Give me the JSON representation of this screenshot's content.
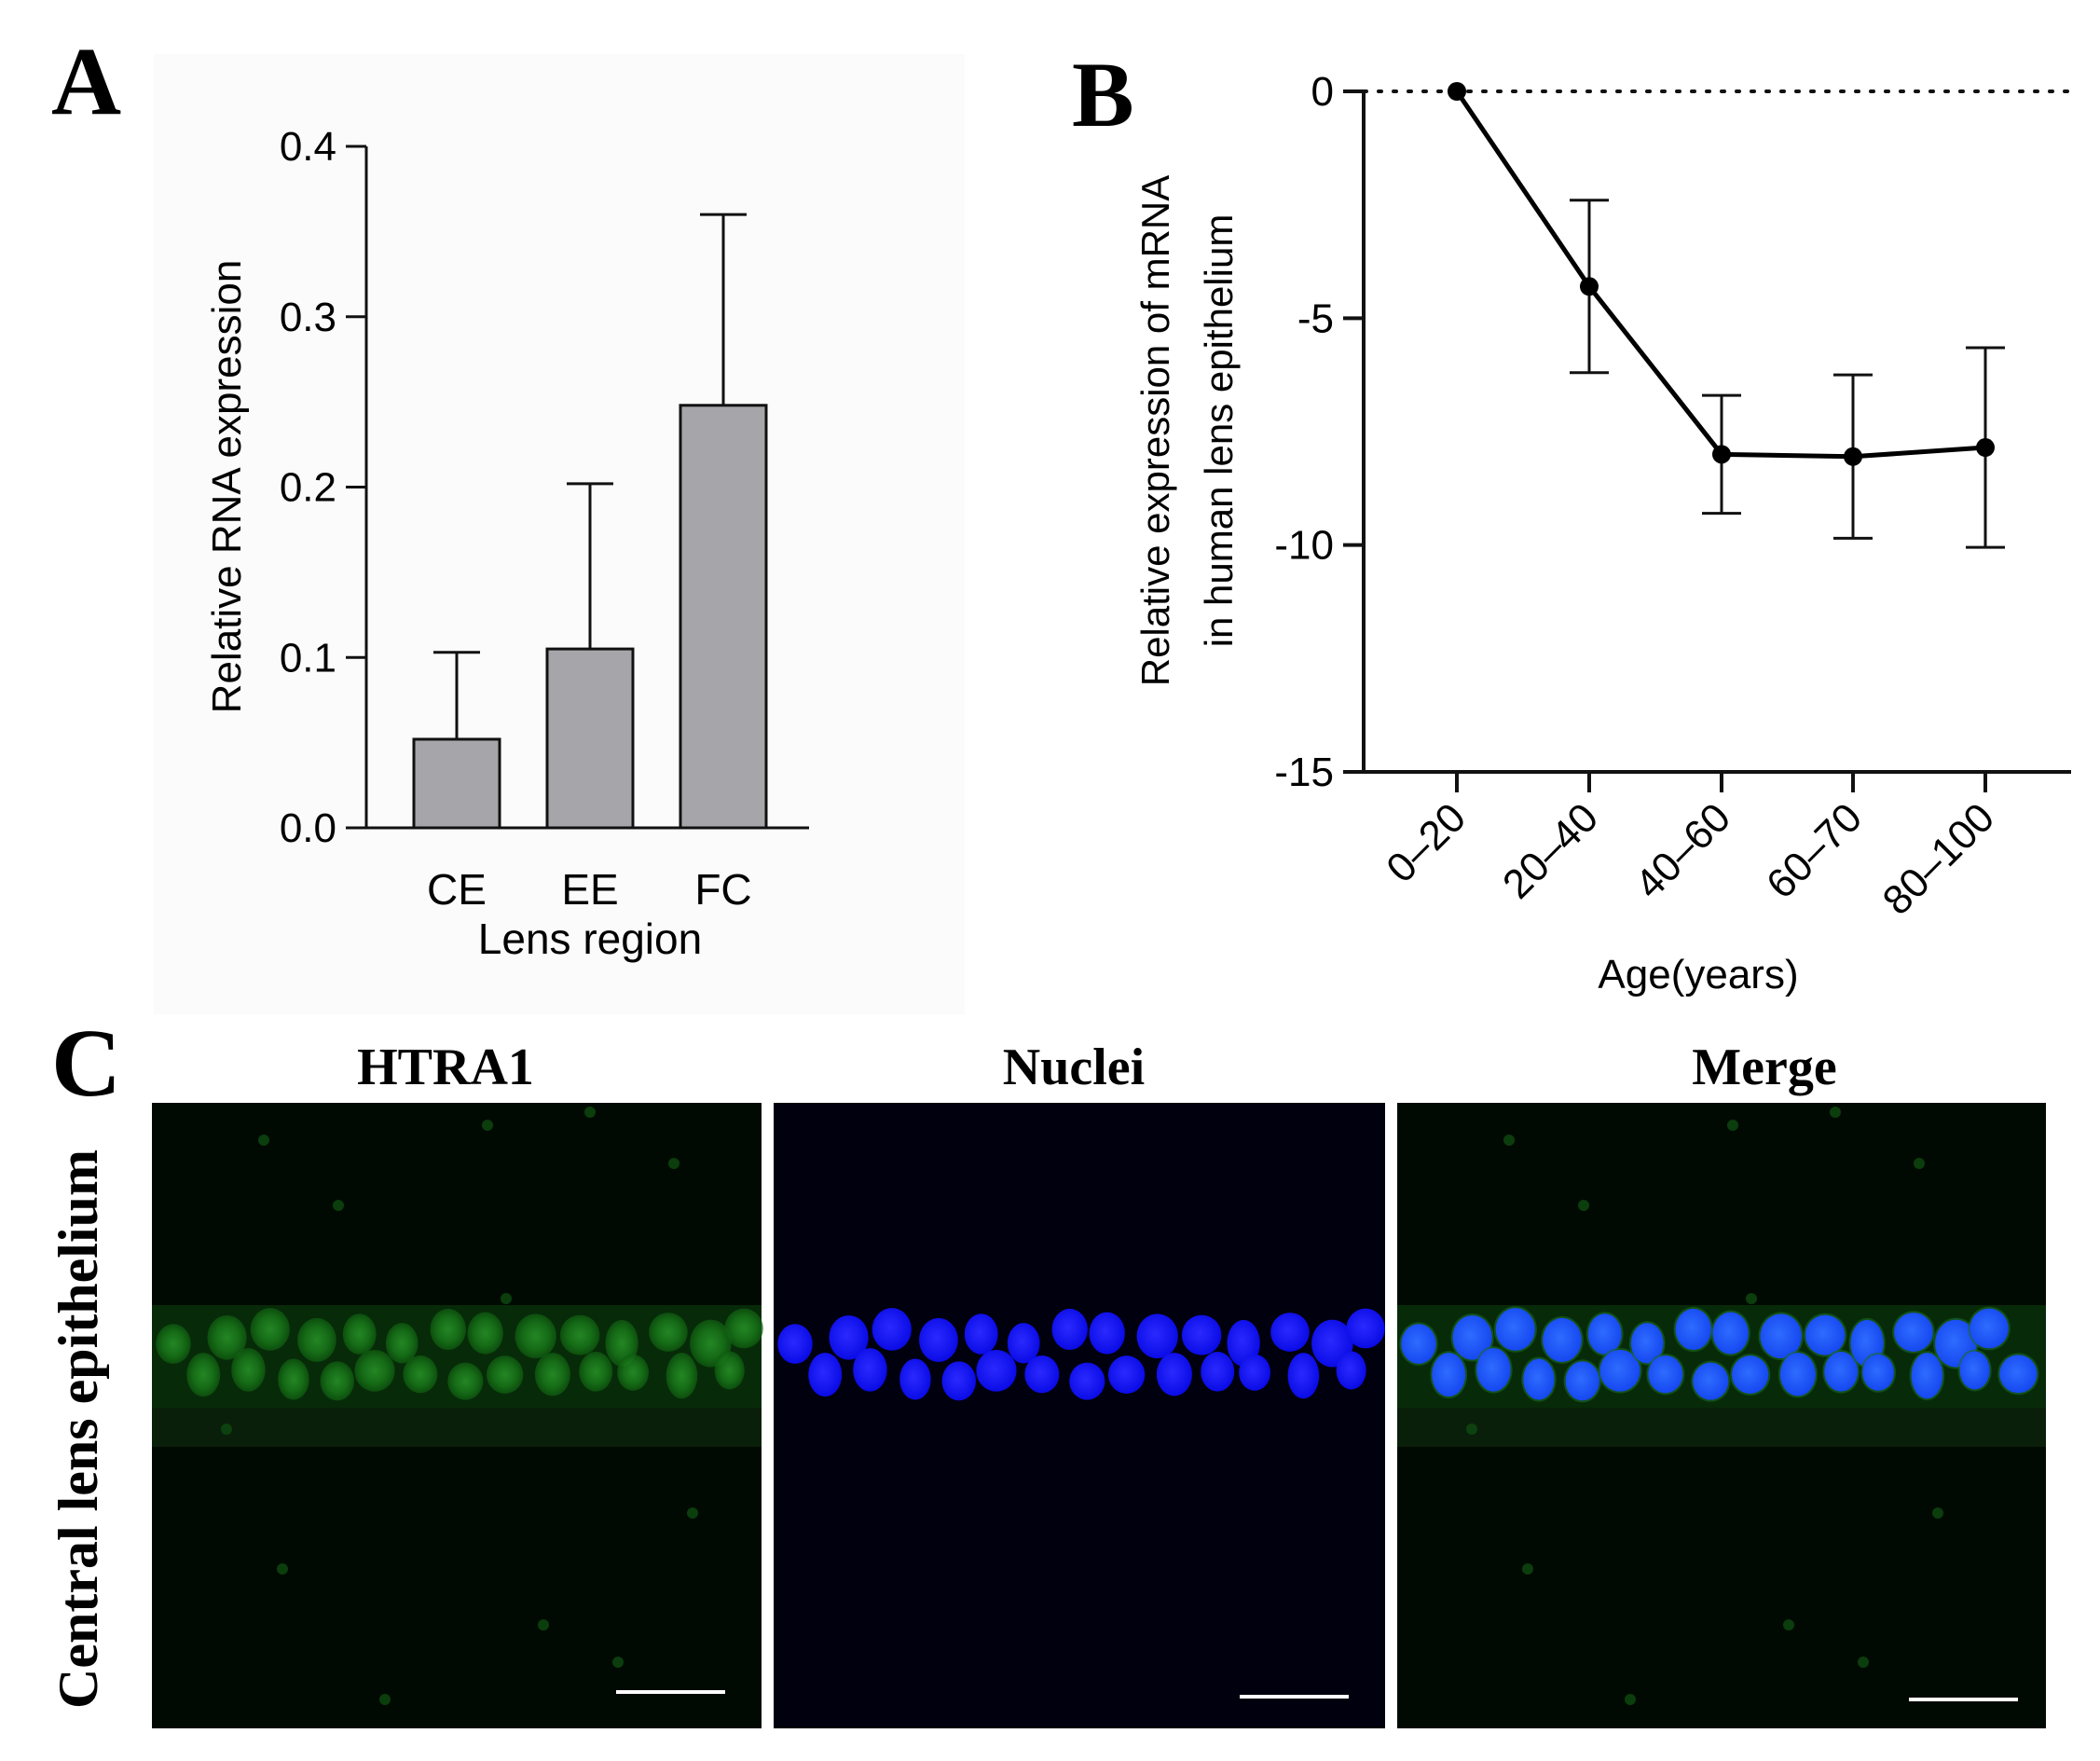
{
  "panel_letters": {
    "a": "A",
    "b": "B",
    "c": "C"
  },
  "chart_data": [
    {
      "panel": "A",
      "type": "bar",
      "categories": [
        "CE",
        "EE",
        "FC"
      ],
      "values": [
        0.052,
        0.105,
        0.248
      ],
      "error_up": [
        0.051,
        0.097,
        0.112
      ],
      "xlabel": "Lens region",
      "ylabel": "Relative RNA expression",
      "ylim": [
        0,
        0.4
      ],
      "yticks": [
        "0.0",
        "0.1",
        "0.2",
        "0.3",
        "0.4"
      ],
      "bar_color": "#a6a6aa",
      "grid": false
    },
    {
      "panel": "B",
      "type": "line",
      "categories": [
        "0–20",
        "20–40",
        "40–60",
        "60–70",
        "80–100"
      ],
      "values": [
        0,
        -4.3,
        -8.0,
        -8.05,
        -7.85
      ],
      "error": [
        0,
        1.9,
        1.3,
        1.8,
        2.2
      ],
      "reference_line": 0,
      "xlabel": "Age(years)",
      "ylabel": [
        "Relative expression of mRNA",
        "in human lens epithelium"
      ],
      "ylim": [
        -15,
        0
      ],
      "yticks": [
        "0",
        "-5",
        "-10",
        "-15"
      ],
      "grid": false
    }
  ],
  "panel_c": {
    "columns": [
      "HTRA1",
      "Nuclei",
      "Merge"
    ],
    "row_label": "Central lens epithelium",
    "colors": {
      "htra1": "#1a8a1a",
      "nuclei": "#1414ff",
      "merge_nuclei": "#1850ff",
      "background": "#010a02",
      "nuclei_bg": "#00000e"
    }
  }
}
